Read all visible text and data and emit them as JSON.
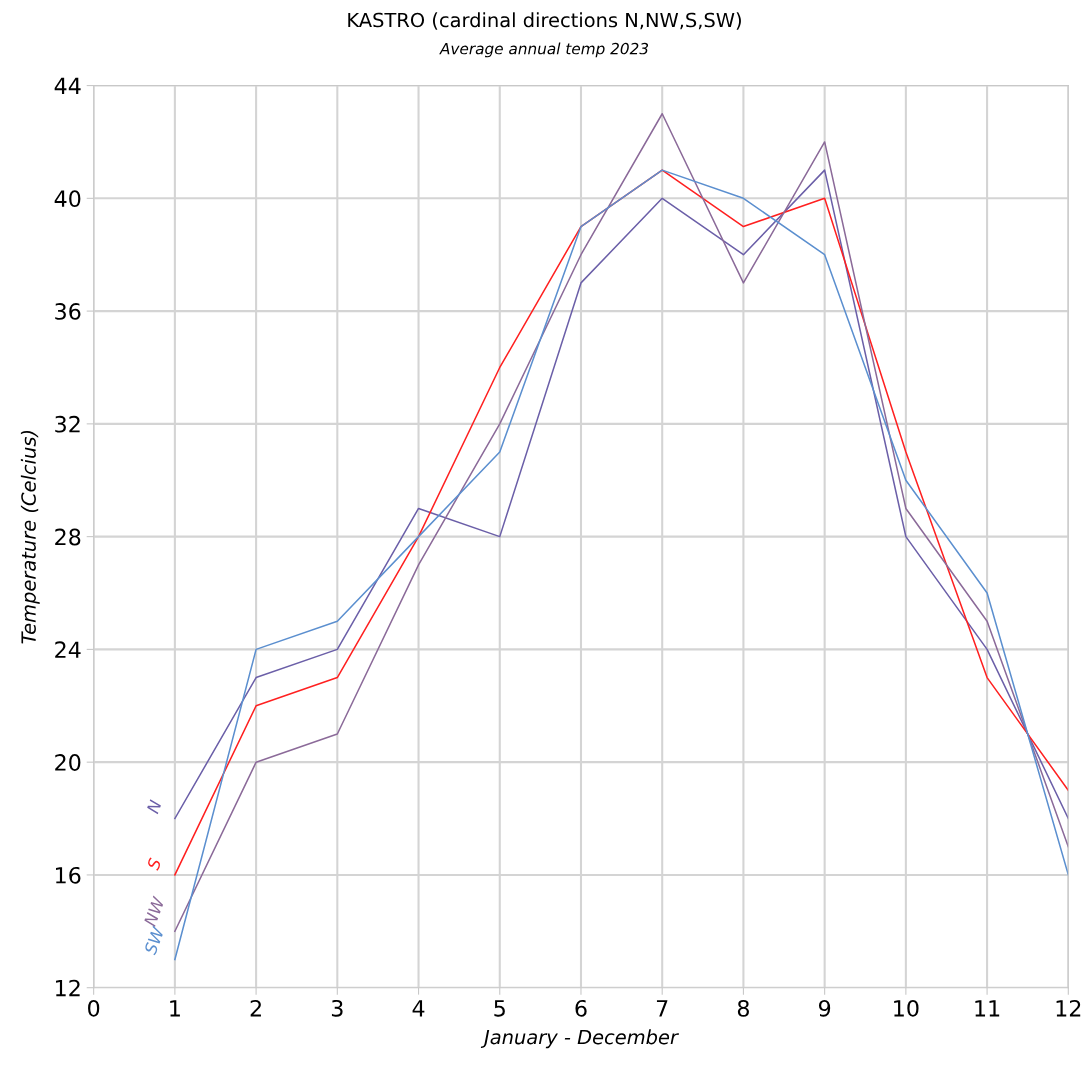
{
  "chart_data": {
    "type": "line",
    "title": "KASTRO (cardinal directions N,NW,S,SW)",
    "subtitle": "Average annual temp 2023",
    "xlabel": "January - December",
    "ylabel": "Temperature (Celcius)",
    "x": [
      1,
      2,
      3,
      4,
      5,
      6,
      7,
      8,
      9,
      10,
      11,
      12
    ],
    "series": [
      {
        "name": "N",
        "color": "#6b5fa8",
        "values": [
          18,
          23,
          24,
          29,
          28,
          37,
          40,
          38,
          41,
          28,
          24,
          18
        ]
      },
      {
        "name": "S",
        "color": "#ff2020",
        "values": [
          16,
          22,
          23,
          28,
          34,
          39,
          41,
          39,
          40,
          31,
          23,
          19
        ]
      },
      {
        "name": "NW",
        "color": "#8b6a99",
        "values": [
          14,
          20,
          21,
          27,
          32,
          38,
          43,
          37,
          42,
          29,
          25,
          17
        ]
      },
      {
        "name": "SW",
        "color": "#5b8fcf",
        "values": [
          13,
          24,
          25,
          28,
          31,
          39,
          41,
          40,
          38,
          30,
          26,
          16
        ]
      }
    ],
    "xlim": [
      0,
      12
    ],
    "xticks": [
      0,
      1,
      2,
      3,
      4,
      5,
      6,
      7,
      8,
      9,
      10,
      11,
      12
    ],
    "ylim": [
      12,
      44
    ],
    "yticks": [
      12,
      16,
      20,
      24,
      28,
      32,
      36,
      40,
      44
    ],
    "grid": true,
    "legend": false,
    "marker": "none",
    "line_style": "solid"
  }
}
